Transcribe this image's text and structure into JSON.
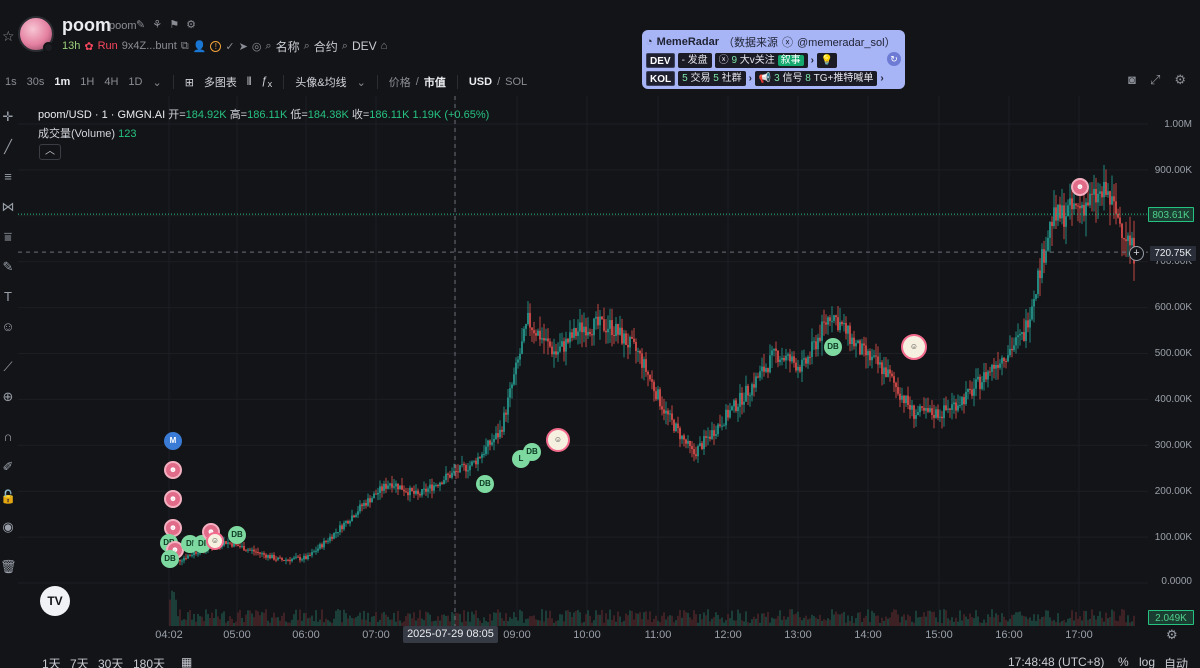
{
  "token": {
    "name": "poom",
    "sub": "poom",
    "age": "13h",
    "run": "Run",
    "address": "9x4Z...bunt",
    "links": [
      "名称",
      "合约",
      "DEV"
    ]
  },
  "radar": {
    "title": "MemeRadar",
    "source": "（数据来源",
    "handle": "@memeradar_sol）",
    "dev_tag": "DEV",
    "dev_item1": "- 发盘",
    "dev_item2_num": "9",
    "dev_item2_label": "大v关注",
    "dev_item3": "叙事",
    "kol_tag": "KOL",
    "kol_trades_num": "5",
    "kol_trades_label": "交易",
    "kol_groups_num": "5",
    "kol_groups_label": "社群",
    "kol_signals_num": "3",
    "kol_signals_label": "信号",
    "kol_tg_num": "8",
    "kol_tg_label": "TG+推特喊单"
  },
  "toolbar": {
    "intervals": [
      "1s",
      "30s",
      "1m",
      "1H",
      "4H",
      "1D"
    ],
    "active_interval": "1m",
    "multi_chart": "多图表",
    "avatar_ma": "头像&均线",
    "price_label": "价格",
    "mcap_label": "市值",
    "currency_usd": "USD",
    "currency_sol": "SOL"
  },
  "legend": {
    "symbol": "poom/USD · 1 · GMGN.AI",
    "open_label": "开=",
    "open": "184.92K",
    "high_label": "高=",
    "high": "186.11K",
    "low_label": "低=",
    "low": "184.38K",
    "close_label": "收=",
    "close": "186.11K",
    "change": "1.19K (+0.65%)",
    "volume_label": "成交量(Volume)",
    "volume_value": "123"
  },
  "price_axis": {
    "ticks": [
      "1.00M",
      "900.00K",
      "800.00K",
      "700.00K",
      "600.00K",
      "500.00K",
      "400.00K",
      "300.00K",
      "200.00K",
      "100.00K",
      "0.0000"
    ],
    "current_price": "803.61K",
    "crosshair_price": "720.75K",
    "volume_label": "2.049K"
  },
  "time_axis": {
    "ticks": [
      "04:02",
      "05:00",
      "06:00",
      "07:00",
      "08:05",
      "09:00",
      "10:00",
      "11:00",
      "12:00",
      "13:00",
      "14:00",
      "15:00",
      "16:00",
      "17:00"
    ],
    "crosshair_time": "2025-07-29  08:05"
  },
  "bottom": {
    "ranges": [
      "1天",
      "7天",
      "30天",
      "180天"
    ],
    "clock": "17:48:48 (UTC+8)",
    "pct": "%",
    "log": "log",
    "auto": "自动"
  },
  "markers": {
    "db": "DB",
    "l": "L",
    "m": "M",
    "di": "DI"
  },
  "chart_data": {
    "type": "candlestick",
    "x_label": "",
    "y_label": "",
    "ylim": [
      0,
      1000000
    ],
    "x_times": [
      "04:02",
      "04:30",
      "05:00",
      "05:30",
      "06:00",
      "06:30",
      "07:00",
      "07:30",
      "08:00",
      "08:30",
      "09:00",
      "09:30",
      "09:50",
      "10:00",
      "10:15",
      "10:30",
      "11:00",
      "11:30",
      "12:00",
      "12:20",
      "12:40",
      "13:00",
      "13:30",
      "13:50",
      "14:00",
      "14:30",
      "14:45",
      "15:00",
      "15:30",
      "16:00",
      "16:30",
      "16:50",
      "17:00",
      "17:15",
      "17:30",
      "17:48"
    ],
    "close_values": [
      40000,
      70000,
      90000,
      70000,
      50000,
      55000,
      110000,
      170000,
      220000,
      190000,
      230000,
      260000,
      330000,
      570000,
      500000,
      560000,
      560000,
      500000,
      370000,
      280000,
      350000,
      420000,
      500000,
      470000,
      590000,
      510000,
      460000,
      370000,
      370000,
      410000,
      480000,
      540000,
      790000,
      820000,
      850000,
      720000
    ]
  }
}
